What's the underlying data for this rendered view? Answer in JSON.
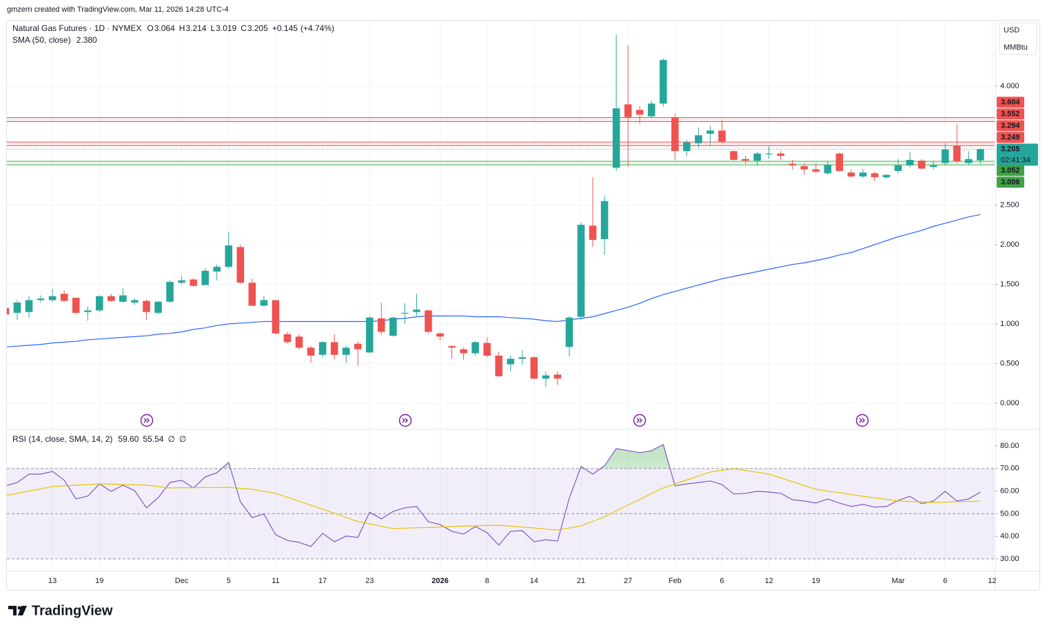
{
  "caption": "gmzern created with TradingView.com, Mar 11, 2026 14:28 UTC-4",
  "brand": "TradingView",
  "currency": "USD",
  "unit": "MMBtu",
  "chart_data": [
    {
      "type": "candlestick",
      "title": "Natural Gas Futures · 1D · NYMEX",
      "ohlc_header": [
        {
          "name": "O",
          "value": 3.064
        },
        {
          "name": "H",
          "value": 3.214
        },
        {
          "name": "L",
          "value": 3.019
        },
        {
          "name": "C",
          "value": 3.205
        }
      ],
      "change": {
        "value": 0.145,
        "label": "+0.145"
      },
      "change_pct": {
        "value": 4.74,
        "label": "(+4.74%)"
      },
      "up_color": "#26a69a",
      "down_color": "#ef5350",
      "open": [
        1.2,
        1.14,
        1.15,
        1.3,
        1.3,
        1.38,
        1.33,
        1.15,
        1.17,
        1.35,
        1.28,
        1.27,
        1.29,
        1.14,
        1.28,
        1.52,
        1.56,
        1.49,
        1.66,
        1.72,
        1.97,
        1.52,
        1.23,
        1.3,
        0.87,
        0.84,
        0.7,
        0.61,
        0.77,
        0.61,
        0.75,
        0.64,
        1.07,
        0.85,
        1.13,
        1.15,
        1.17,
        0.88,
        0.72,
        0.68,
        0.63,
        0.76,
        0.6,
        0.49,
        0.56,
        0.58,
        0.31,
        0.36,
        0.71,
        1.09,
        2.24,
        2.07,
        2.97,
        3.77,
        3.7,
        3.62,
        3.78,
        3.6,
        3.18,
        3.28,
        3.4,
        3.44,
        3.18,
        3.08,
        3.06,
        3.14,
        3.15,
        3.02,
        2.99,
        2.95,
        2.9,
        3.15,
        2.91,
        2.86,
        2.9,
        2.85,
        2.93,
        3.0,
        3.06,
        2.98,
        3.03,
        3.25,
        3.03,
        3.064
      ],
      "high": [
        1.25,
        1.3,
        1.35,
        1.36,
        1.44,
        1.42,
        1.33,
        1.22,
        1.36,
        1.38,
        1.45,
        1.32,
        1.31,
        1.29,
        1.55,
        1.6,
        1.58,
        1.7,
        1.75,
        2.16,
        2.0,
        1.57,
        1.35,
        1.3,
        0.9,
        0.87,
        0.72,
        0.78,
        0.87,
        0.72,
        0.78,
        1.1,
        1.27,
        1.09,
        1.26,
        1.38,
        1.18,
        0.89,
        0.73,
        0.7,
        0.78,
        0.83,
        0.65,
        0.6,
        0.67,
        0.59,
        0.4,
        0.4,
        1.1,
        2.28,
        2.85,
        2.62,
        4.65,
        4.52,
        3.75,
        3.82,
        4.35,
        3.65,
        3.32,
        3.48,
        3.5,
        3.57,
        3.19,
        3.12,
        3.17,
        3.24,
        3.18,
        3.07,
        3.02,
        3.02,
        3.06,
        3.16,
        2.95,
        2.95,
        2.92,
        2.89,
        3.08,
        3.17,
        3.08,
        3.06,
        3.28,
        3.52,
        3.18,
        3.214
      ],
      "low": [
        1.08,
        1.05,
        1.08,
        1.27,
        1.28,
        1.28,
        1.12,
        1.04,
        1.15,
        1.28,
        1.27,
        1.24,
        1.05,
        1.12,
        1.27,
        1.5,
        1.47,
        1.49,
        1.55,
        1.7,
        1.51,
        1.22,
        1.22,
        0.87,
        0.75,
        0.68,
        0.51,
        0.58,
        0.55,
        0.51,
        0.47,
        0.63,
        0.86,
        0.84,
        1.0,
        1.1,
        0.88,
        0.79,
        0.56,
        0.55,
        0.6,
        0.58,
        0.33,
        0.4,
        0.49,
        0.3,
        0.21,
        0.23,
        0.59,
        1.05,
        1.97,
        1.87,
        2.93,
        2.98,
        3.52,
        3.6,
        3.74,
        3.07,
        3.12,
        3.22,
        3.25,
        3.28,
        3.06,
        3.02,
        3.0,
        3.08,
        3.07,
        2.95,
        2.88,
        2.9,
        2.88,
        2.92,
        2.85,
        2.84,
        2.8,
        2.83,
        2.9,
        2.97,
        2.94,
        2.95,
        3.0,
        3.03,
        3.0,
        3.019
      ],
      "close": [
        1.12,
        1.27,
        1.3,
        1.32,
        1.35,
        1.29,
        1.14,
        1.17,
        1.35,
        1.29,
        1.36,
        1.3,
        1.15,
        1.28,
        1.53,
        1.55,
        1.48,
        1.67,
        1.72,
        1.99,
        1.52,
        1.23,
        1.3,
        0.88,
        0.77,
        0.7,
        0.6,
        0.77,
        0.61,
        0.7,
        0.68,
        1.08,
        0.9,
        1.08,
        1.14,
        1.18,
        0.9,
        0.84,
        0.7,
        0.63,
        0.77,
        0.6,
        0.34,
        0.56,
        0.58,
        0.31,
        0.35,
        0.31,
        1.08,
        2.25,
        2.06,
        2.55,
        3.72,
        3.61,
        3.64,
        3.78,
        4.33,
        3.18,
        3.29,
        3.38,
        3.44,
        3.3,
        3.07,
        3.06,
        3.15,
        3.15,
        3.12,
        3.0,
        2.95,
        2.92,
        3.01,
        2.93,
        2.86,
        2.91,
        2.85,
        2.88,
        3.0,
        3.07,
        2.96,
        3.0,
        3.2,
        3.05,
        3.08,
        3.205
      ],
      "series": [
        {
          "name": "SMA (50, close)",
          "color": "#2962ff",
          "last": {
            "value": 2.38,
            "label": "2.380"
          },
          "values": [
            0.71,
            0.72,
            0.73,
            0.74,
            0.76,
            0.77,
            0.78,
            0.8,
            0.81,
            0.82,
            0.83,
            0.84,
            0.85,
            0.87,
            0.88,
            0.9,
            0.93,
            0.95,
            0.98,
            1.0,
            1.01,
            1.02,
            1.03,
            1.03,
            1.03,
            1.03,
            1.03,
            1.03,
            1.03,
            1.03,
            1.03,
            1.03,
            1.04,
            1.06,
            1.07,
            1.09,
            1.1,
            1.1,
            1.1,
            1.1,
            1.09,
            1.09,
            1.09,
            1.08,
            1.07,
            1.06,
            1.04,
            1.03,
            1.05,
            1.07,
            1.09,
            1.13,
            1.17,
            1.21,
            1.26,
            1.32,
            1.37,
            1.41,
            1.45,
            1.49,
            1.53,
            1.57,
            1.6,
            1.63,
            1.66,
            1.69,
            1.72,
            1.75,
            1.77,
            1.8,
            1.83,
            1.87,
            1.9,
            1.95,
            2.0,
            2.05,
            2.1,
            2.14,
            2.18,
            2.23,
            2.27,
            2.31,
            2.35,
            2.38
          ]
        }
      ],
      "zones": [
        {
          "from": 3.552,
          "to": 3.604,
          "color": "#ef5350"
        },
        {
          "from": 3.249,
          "to": 3.294,
          "color": "#ef5350"
        },
        {
          "from": 3.006,
          "to": 3.052,
          "color": "#4caf50"
        }
      ],
      "current": {
        "value": 3.205,
        "countdown": "02:41:34"
      },
      "xlim": [
        0.12,
        84.21
      ],
      "xticks": [
        {
          "value": 4,
          "label": "13"
        },
        {
          "value": 8,
          "label": "19"
        },
        {
          "value": 15,
          "label": "Dec"
        },
        {
          "value": 19,
          "label": "5"
        },
        {
          "value": 23,
          "label": "11"
        },
        {
          "value": 27,
          "label": "17"
        },
        {
          "value": 31,
          "label": "23"
        },
        {
          "value": 37,
          "label": "2026"
        },
        {
          "value": 41,
          "label": "8"
        },
        {
          "value": 45,
          "label": "14"
        },
        {
          "value": 49,
          "label": "21"
        },
        {
          "value": 53,
          "label": "27"
        },
        {
          "value": 57,
          "label": "Feb"
        },
        {
          "value": 61,
          "label": "6"
        },
        {
          "value": 65,
          "label": "12"
        },
        {
          "value": 69,
          "label": "19"
        },
        {
          "value": 76,
          "label": "Mar"
        },
        {
          "value": 80,
          "label": "6"
        },
        {
          "value": 84,
          "label": "12"
        }
      ],
      "ylim": [
        -0.322,
        4.826
      ],
      "yticks": [
        {
          "value": 0,
          "label": "0.000"
        },
        {
          "value": 0.5,
          "label": "0.500"
        },
        {
          "value": 1,
          "label": "1.000"
        },
        {
          "value": 1.5,
          "label": "1.500"
        },
        {
          "value": 2,
          "label": "2.000"
        },
        {
          "value": 2.5,
          "label": "2.500"
        },
        {
          "value": 4,
          "label": "4.000"
        }
      ],
      "grid": true
    },
    {
      "type": "line",
      "title": "RSI (14, close, SMA, 14, 2)",
      "extra": [
        "∅",
        "∅"
      ],
      "series": [
        {
          "color": "#7e57c2",
          "last": {
            "value": 59.6,
            "label": "59.60"
          },
          "values": [
            62.3,
            63.8,
            67.5,
            67.5,
            68.7,
            64.8,
            56.5,
            57.8,
            63.2,
            59.9,
            62.6,
            60.2,
            52.6,
            57.1,
            63.8,
            64.8,
            61.4,
            66.3,
            68.1,
            72.7,
            55.3,
            48.3,
            49.8,
            40.7,
            38.2,
            37.3,
            35.5,
            41.3,
            37.6,
            40.1,
            39.5,
            50.7,
            47.7,
            51.0,
            52.6,
            53.2,
            46.5,
            45.2,
            42.2,
            41.0,
            44.3,
            41.6,
            36.1,
            42.2,
            42.5,
            37.6,
            38.5,
            37.9,
            56.8,
            70.9,
            67.5,
            71.2,
            78.8,
            77.9,
            77.0,
            77.9,
            80.6,
            62.3,
            63.2,
            63.8,
            64.5,
            62.9,
            58.7,
            59.0,
            59.9,
            59.6,
            59.0,
            56.2,
            55.6,
            54.7,
            56.5,
            54.7,
            53.2,
            54.1,
            52.9,
            53.2,
            55.9,
            57.7,
            54.4,
            55.6,
            59.9,
            55.6,
            56.5,
            59.6
          ]
        },
        {
          "color": "#e6c300",
          "last": 55.54,
          "values": [
            58.0,
            59.0,
            60.0,
            61.0,
            62.0,
            62.3,
            62.6,
            62.9,
            63.2,
            63.1,
            62.9,
            62.8,
            62.6,
            62.0,
            61.4,
            61.5,
            61.5,
            61.6,
            61.6,
            61.7,
            61.2,
            60.8,
            59.9,
            59.0,
            57.3,
            55.5,
            53.8,
            52.0,
            50.2,
            48.3,
            46.5,
            45.5,
            44.4,
            43.4,
            43.6,
            43.8,
            43.9,
            44.1,
            44.3,
            44.5,
            44.6,
            44.8,
            44.9,
            44.5,
            44.1,
            43.7,
            43.2,
            42.8,
            43.7,
            44.6,
            46.6,
            48.6,
            51.2,
            53.8,
            56.3,
            58.9,
            61.4,
            63.2,
            64.9,
            66.7,
            68.4,
            69.2,
            69.9,
            69.1,
            68.3,
            67.5,
            65.8,
            64.2,
            62.5,
            60.8,
            60.0,
            59.3,
            58.5,
            57.7,
            57.0,
            56.3,
            55.6,
            55.4,
            55.2,
            55.0,
            55.1,
            55.3,
            55.4,
            55.54
          ]
        }
      ],
      "levels": [
        70,
        50,
        30
      ],
      "band": [
        30,
        70
      ],
      "band_color": "#7e57c2",
      "overbought_color": "#4caf50",
      "ylim": [
        24.8,
        87.0
      ],
      "yticks": [
        {
          "value": 30,
          "label": "30.00"
        },
        {
          "value": 40,
          "label": "40.00"
        },
        {
          "value": 50,
          "label": "50.00"
        },
        {
          "value": 60,
          "label": "60.00"
        },
        {
          "value": 70,
          "label": "70.00"
        },
        {
          "value": 80,
          "label": "80.00"
        }
      ]
    }
  ]
}
